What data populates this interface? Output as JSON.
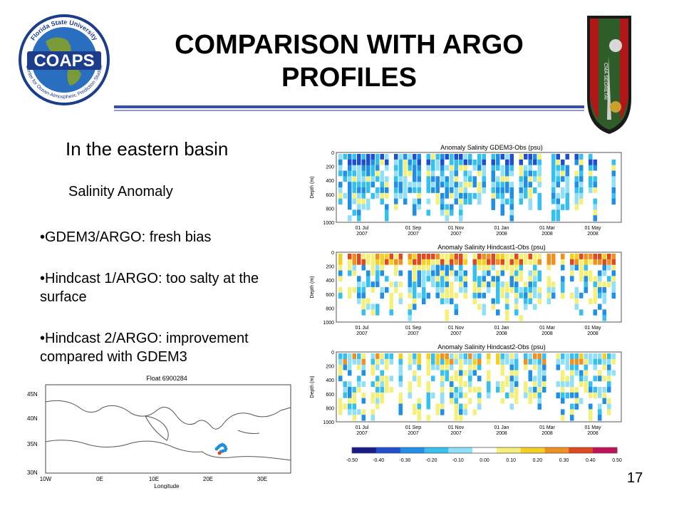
{
  "slide": {
    "title_line1": "COMPARISON WITH ARGO",
    "title_line2": "PROFILES",
    "logo": {
      "arc_text": "Florida State University",
      "name": "COAPS",
      "lower_text": "Center for Ocean-Atmospheric Prediction Studies"
    },
    "insignia_text": "CMA SEGRETAI",
    "subtitle": "In the eastern basin",
    "section_label": "Salinity Anomaly",
    "bullets": [
      "•GDEM3/ARGO: fresh bias",
      "•Hindcast 1/ARGO: too salty at the surface",
      "•Hindcast 2/ARGO: improvement compared with GDEM3"
    ],
    "page_number": "17"
  },
  "map": {
    "title": "Float 6900284",
    "xlabel": "Longitude",
    "lat_labels": [
      "45N",
      "40N",
      "35N",
      "30N"
    ],
    "lon_labels": [
      "10W",
      "0E",
      "10E",
      "20E",
      "30E"
    ],
    "track_color": "#1f8fd6",
    "track_end_color": "#e04020",
    "land_outline_color": "#555555"
  },
  "panels": {
    "titles": [
      "Anomaly Salinity GDEM3-Obs (psu)",
      "Anomaly Salinity Hindcast1-Obs (psu)",
      "Anomaly Salinity Hindcast2-Obs (psu)"
    ],
    "ylabel": "Depth (m)",
    "depth_ticks": [
      "0",
      "200",
      "400",
      "600",
      "800",
      "1000"
    ],
    "date_ticks": [
      [
        "01 Jul",
        "2007"
      ],
      [
        "01 Sep",
        "2007"
      ],
      [
        "01 Nov",
        "2007"
      ],
      [
        "01 Jan",
        "2008"
      ],
      [
        "01 Mar",
        "2008"
      ],
      [
        "01 May",
        "2008"
      ]
    ]
  },
  "colorbar": {
    "labels": [
      "-0.50",
      "-0.40",
      "-0.30",
      "-0.20",
      "-0.10",
      "0.00",
      "0.10",
      "0.20",
      "0.30",
      "0.40",
      "0.50"
    ],
    "colors": [
      "#1a1a8c",
      "#1f4fd0",
      "#1f8fe8",
      "#35c0f0",
      "#8fe0f8",
      "#ffffff",
      "#f5f07a",
      "#f5d020",
      "#f09020",
      "#e04820",
      "#c0105a"
    ]
  }
}
